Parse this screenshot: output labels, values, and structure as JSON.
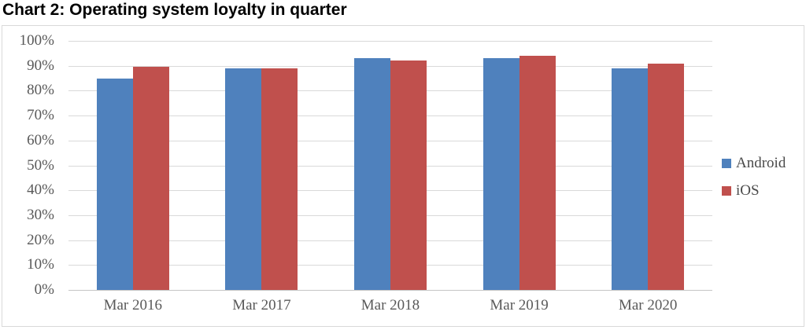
{
  "page": {
    "title": "Chart 2: Operating system loyalty in quarter"
  },
  "chart_data": {
    "type": "bar",
    "title": "Chart 2: Operating system loyalty in quarter",
    "categories": [
      "Mar 2016",
      "Mar 2017",
      "Mar 2018",
      "Mar 2019",
      "Mar 2020"
    ],
    "series": [
      {
        "name": "Android",
        "color": "#4f81bd",
        "values": [
          85,
          89,
          93,
          93,
          89
        ]
      },
      {
        "name": "iOS",
        "color": "#c0504d",
        "values": [
          89.5,
          89,
          92,
          94,
          91
        ]
      }
    ],
    "xlabel": "",
    "ylabel": "",
    "ylim": [
      0,
      100
    ],
    "ytick_step": 10,
    "ytick_suffix": "%",
    "grid": true,
    "legend_position": "right",
    "colors": {
      "grid_line": "#d9d9d9",
      "axis_text": "#595959",
      "legend_text": "#4a4a4a",
      "frame_border": "#d9d9d9",
      "title_text": "#000000"
    }
  }
}
